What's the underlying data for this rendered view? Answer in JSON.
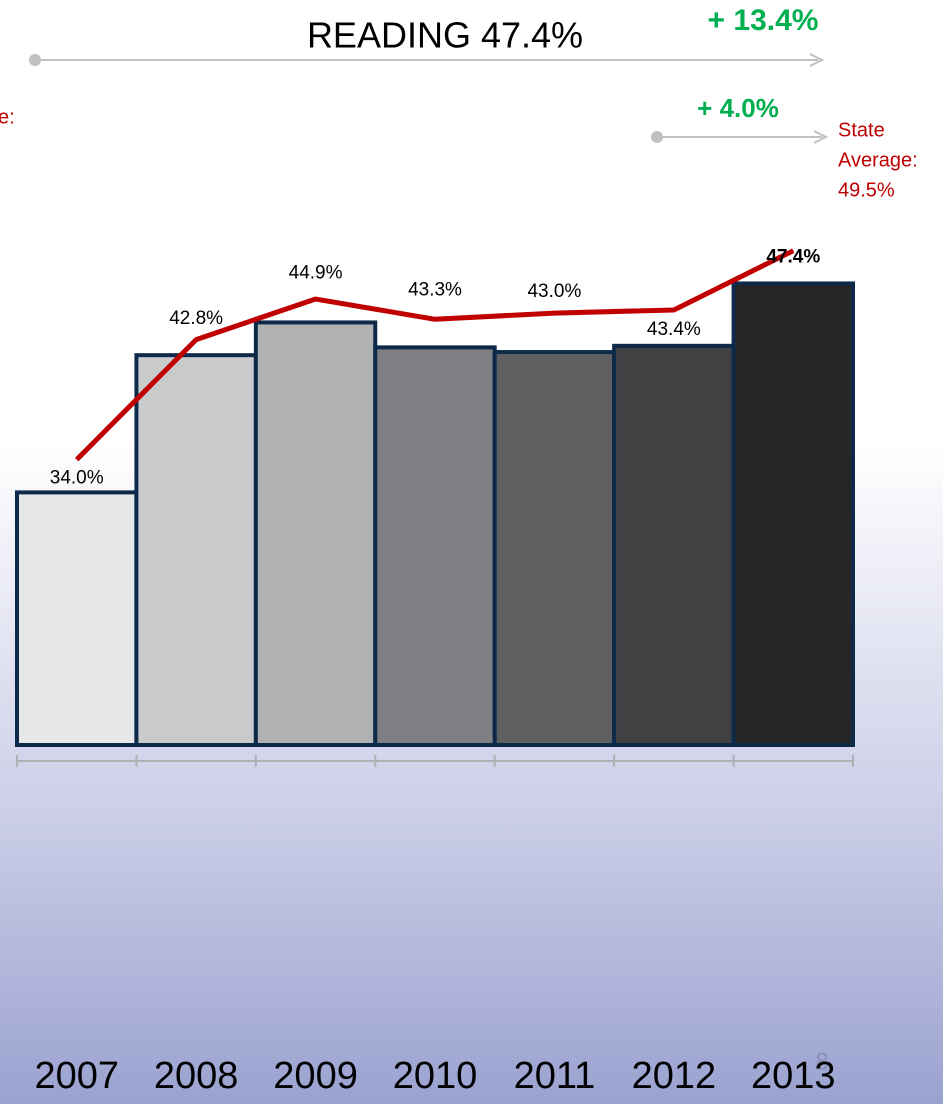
{
  "chart_data": {
    "type": "bar",
    "title": "READING 47.4%",
    "categories": [
      "2007",
      "2008",
      "2009",
      "2010",
      "2011",
      "2012",
      "2013"
    ],
    "values": [
      34.0,
      42.8,
      44.9,
      43.3,
      43.0,
      43.4,
      47.4
    ],
    "value_labels": [
      "34.0%",
      "42.8%",
      "44.9%",
      "43.3%",
      "43.0%",
      "43.4%",
      "47.4%"
    ],
    "colors": [
      "#e5e7e8",
      "#c9cacc",
      "#b1b2b4",
      "#7f8083",
      "#5f6062",
      "#404143",
      "#262626"
    ],
    "ylim": [
      17.8,
      65
    ],
    "line": {
      "type": "line",
      "color": "#c00000",
      "values": [
        36.1,
        43.8,
        46.4,
        45.1,
        45.5,
        45.7,
        49.5
      ]
    },
    "annotations": {
      "change_overall": "+ 13.4%",
      "change_year": "+ 4.0%",
      "state_label": [
        "State",
        "Average:",
        "49.5%"
      ],
      "cut_label": "e:"
    },
    "page_number": "8"
  }
}
